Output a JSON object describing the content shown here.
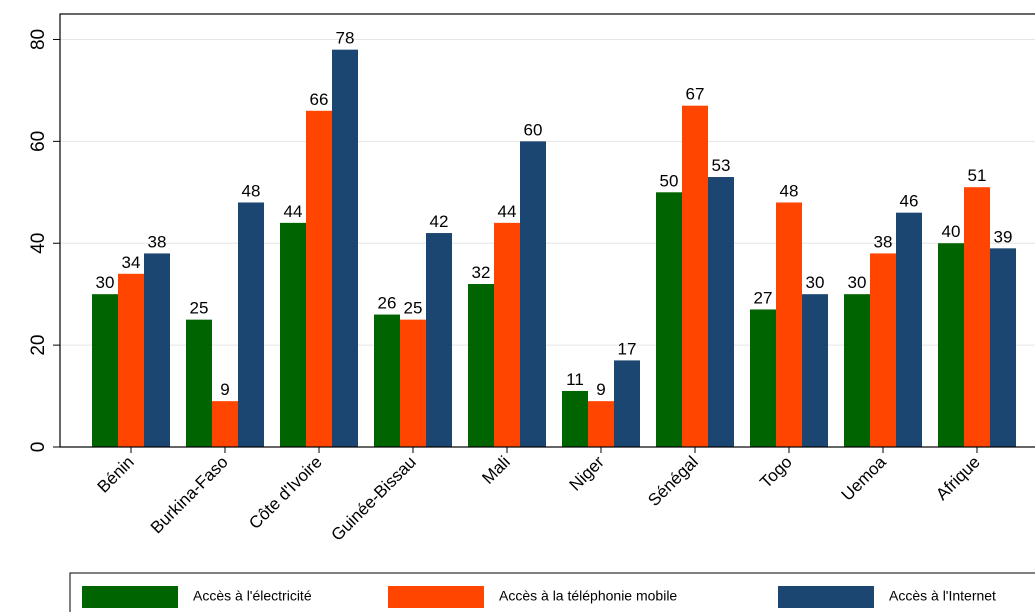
{
  "chart_data": {
    "type": "bar",
    "categories": [
      "Bénin",
      "Burkina-Faso",
      "Côte d'Ivoire",
      "Guinée-Bissau",
      "Mali",
      "Niger",
      "Sénégal",
      "Togo",
      "Uemoa",
      "Afrique"
    ],
    "series": [
      {
        "name": "Accès à l'électricité",
        "color": "#006400",
        "values": [
          30,
          25,
          44,
          26,
          32,
          11,
          50,
          27,
          30,
          40
        ]
      },
      {
        "name": "Accès à la téléphonie mobile",
        "color": "#ff4500",
        "values": [
          34,
          9,
          66,
          25,
          44,
          9,
          67,
          48,
          38,
          51
        ]
      },
      {
        "name": "Accès à l'Internet",
        "color": "#1c4672",
        "values": [
          38,
          48,
          78,
          42,
          60,
          17,
          53,
          30,
          46,
          39
        ]
      }
    ],
    "ylim": [
      0,
      85
    ],
    "yticks": [
      0,
      20,
      40,
      60,
      80
    ],
    "grid": true,
    "legend": "bottom"
  }
}
